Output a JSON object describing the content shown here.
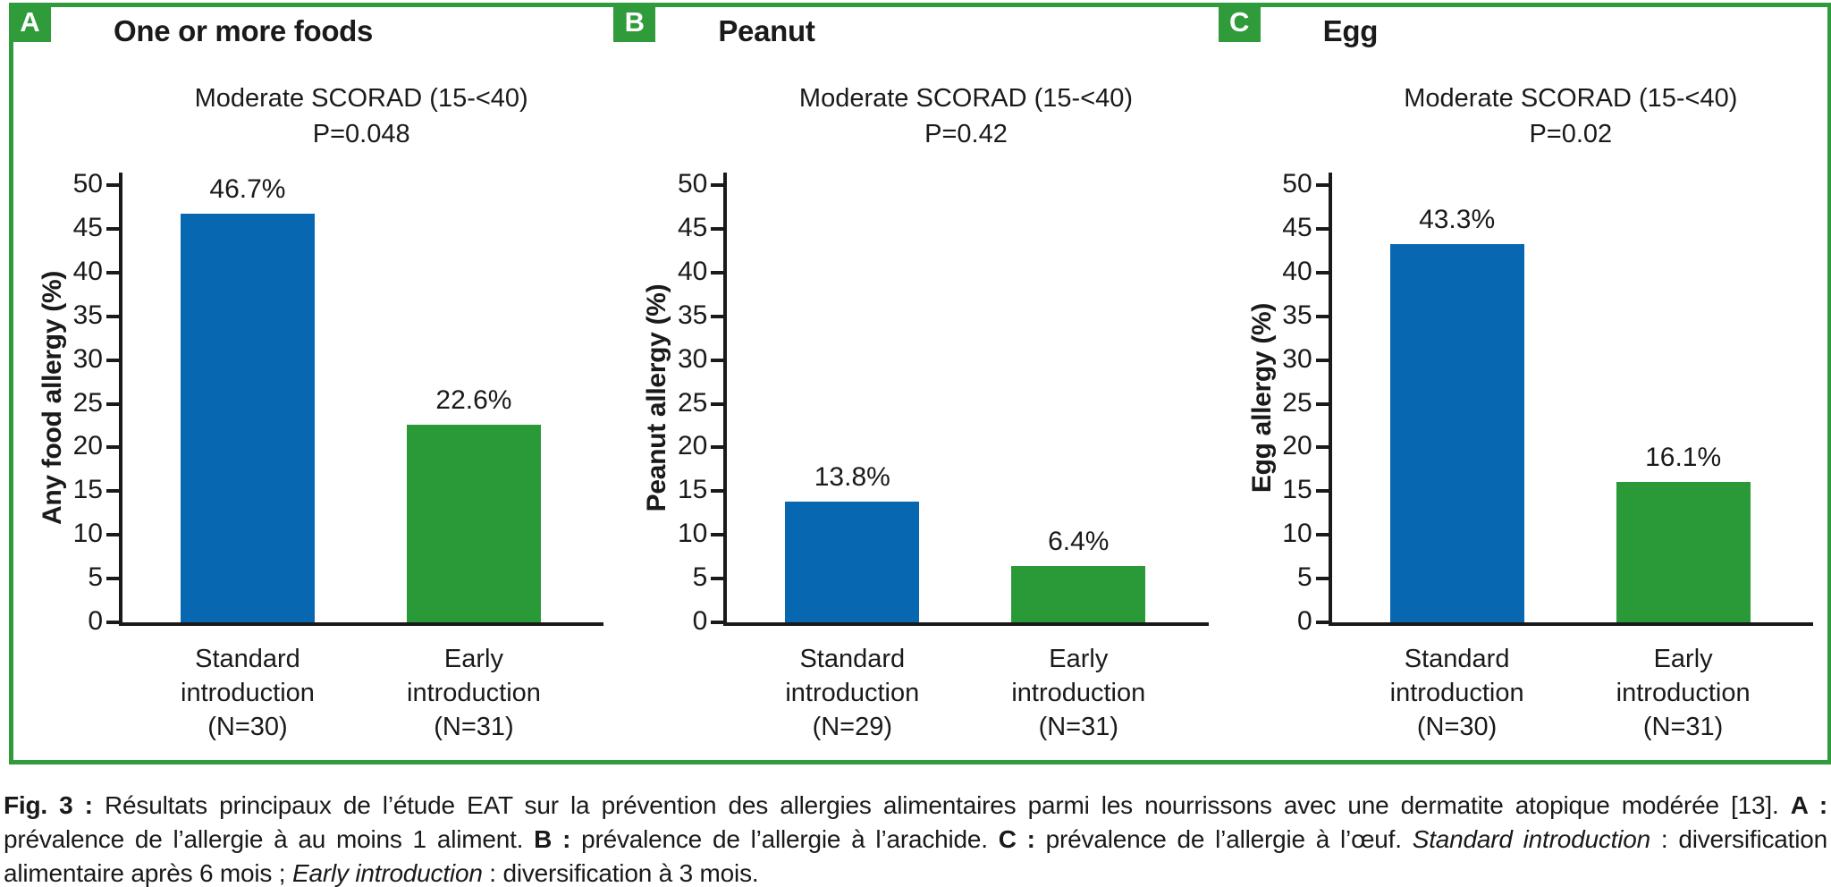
{
  "colors": {
    "frame_green": "#2f9b3a",
    "standard_intro_blue": "#0768b1",
    "early_intro_green": "#2a9a39",
    "axis_black": "#1a1a1a"
  },
  "chart_data": [
    {
      "type": "bar",
      "panel_label": "A",
      "title": "One or more foods",
      "subtitle": "Moderate SCORAD (15-<40)",
      "p_value": "P=0.048",
      "ylabel": "Any food allergy (%)",
      "ylim": [
        0,
        50
      ],
      "ytick_step": 5,
      "grid": false,
      "legend": "none",
      "categories": [
        [
          "Standard",
          "introduction",
          "(N=30)"
        ],
        [
          "Early",
          "introduction",
          "(N=31)"
        ]
      ],
      "values": [
        46.7,
        22.6
      ],
      "value_labels": [
        "46.7%",
        "22.6%"
      ],
      "bar_colors": [
        "#0768b1",
        "#2a9a39"
      ]
    },
    {
      "type": "bar",
      "panel_label": "B",
      "title": "Peanut",
      "subtitle": "Moderate SCORAD (15-<40)",
      "p_value": "P=0.42",
      "ylabel": "Peanut allergy (%)",
      "ylim": [
        0,
        50
      ],
      "ytick_step": 5,
      "grid": false,
      "legend": "none",
      "categories": [
        [
          "Standard",
          "introduction",
          "(N=29)"
        ],
        [
          "Early",
          "introduction",
          "(N=31)"
        ]
      ],
      "values": [
        13.8,
        6.4
      ],
      "value_labels": [
        "13.8%",
        "6.4%"
      ],
      "bar_colors": [
        "#0768b1",
        "#2a9a39"
      ]
    },
    {
      "type": "bar",
      "panel_label": "C",
      "title": "Egg",
      "subtitle": "Moderate SCORAD (15-<40)",
      "p_value": "P=0.02",
      "ylabel": "Egg allergy (%)",
      "ylim": [
        0,
        50
      ],
      "ytick_step": 5,
      "grid": false,
      "legend": "none",
      "categories": [
        [
          "Standard",
          "introduction",
          "(N=30)"
        ],
        [
          "Early",
          "introduction",
          "(N=31)"
        ]
      ],
      "values": [
        43.3,
        16.1
      ],
      "value_labels": [
        "43.3%",
        "16.1%"
      ],
      "bar_colors": [
        "#0768b1",
        "#2a9a39"
      ]
    }
  ],
  "caption": {
    "segments": [
      {
        "text": "Fig. 3 : ",
        "style": "bold"
      },
      {
        "text": "Résultats principaux de l’étude EAT sur la prévention des allergies alimentaires parmi les nourrissons avec une dermatite atopique modérée [13]. ",
        "style": "normal"
      },
      {
        "text": "A : ",
        "style": "bold"
      },
      {
        "text": "prévalence de l’allergie à au moins 1 aliment. ",
        "style": "normal"
      },
      {
        "text": "B : ",
        "style": "bold"
      },
      {
        "text": "prévalence de l’allergie à l’arachide. ",
        "style": "normal"
      },
      {
        "text": "C : ",
        "style": "bold"
      },
      {
        "text": "prévalence de l’allergie à l’œuf. ",
        "style": "normal"
      },
      {
        "text": "Standard introduction",
        "style": "italic"
      },
      {
        "text": " : diversification alimentaire après 6 mois ; ",
        "style": "normal"
      },
      {
        "text": "Early introduction",
        "style": "italic"
      },
      {
        "text": " : diversification à 3 mois.",
        "style": "normal"
      }
    ]
  }
}
